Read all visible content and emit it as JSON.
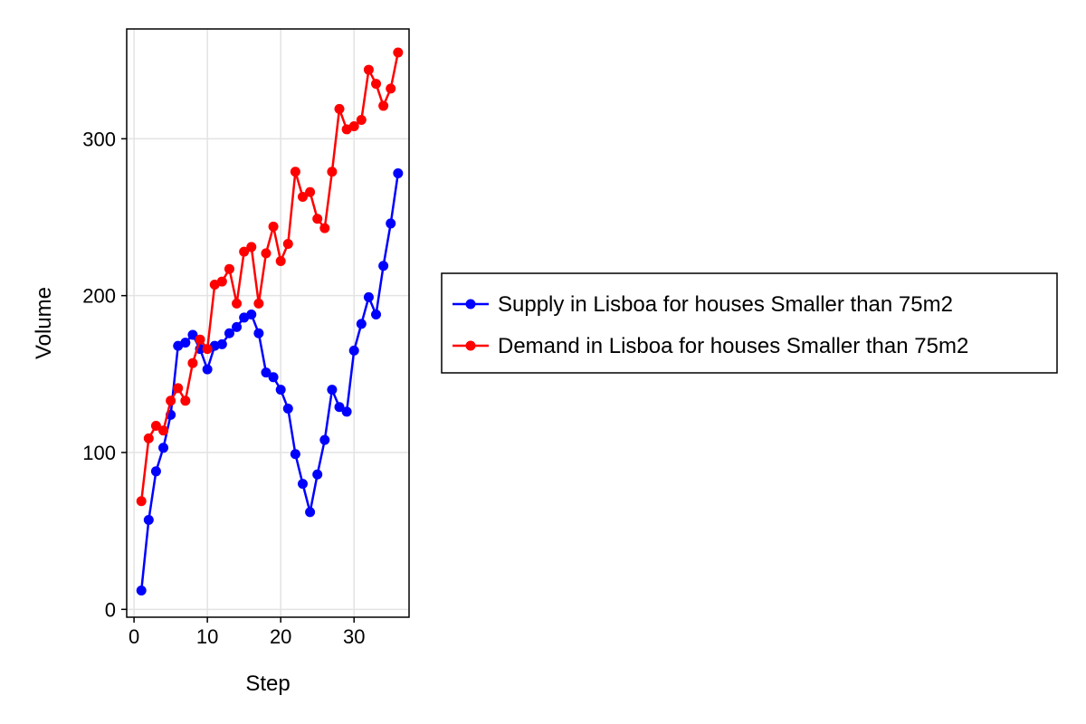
{
  "chart_data": {
    "type": "line",
    "xlabel": "Step",
    "ylabel": "Volume",
    "xlim": [
      -1,
      37.5
    ],
    "ylim": [
      -5,
      370
    ],
    "xticks": [
      0,
      10,
      20,
      30
    ],
    "yticks": [
      0,
      100,
      200,
      300
    ],
    "grid": true,
    "legend_position": "right",
    "x": [
      1,
      2,
      3,
      4,
      5,
      6,
      7,
      8,
      9,
      10,
      11,
      12,
      13,
      14,
      15,
      16,
      17,
      18,
      19,
      20,
      21,
      22,
      23,
      24,
      25,
      26,
      27,
      28,
      29,
      30,
      31,
      32,
      33,
      34,
      35,
      36
    ],
    "series": [
      {
        "name": "Supply in Lisboa for houses Smaller than 75m2",
        "color": "#0000ff",
        "values": [
          12,
          57,
          88,
          103,
          124,
          168,
          170,
          175,
          166,
          153,
          168,
          169,
          176,
          180,
          186,
          188,
          176,
          151,
          148,
          140,
          128,
          99,
          80,
          62,
          86,
          108,
          140,
          129,
          126,
          165,
          182,
          199,
          188,
          219,
          246,
          278
        ]
      },
      {
        "name": "Demand in Lisboa for houses Smaller than 75m2",
        "color": "#ff0000",
        "values": [
          69,
          109,
          117,
          114,
          133,
          141,
          133,
          157,
          172,
          166,
          207,
          209,
          217,
          195,
          228,
          231,
          195,
          227,
          244,
          222,
          233,
          279,
          263,
          266,
          249,
          243,
          279,
          319,
          306,
          308,
          312,
          344,
          335,
          321,
          332,
          355
        ]
      }
    ]
  }
}
